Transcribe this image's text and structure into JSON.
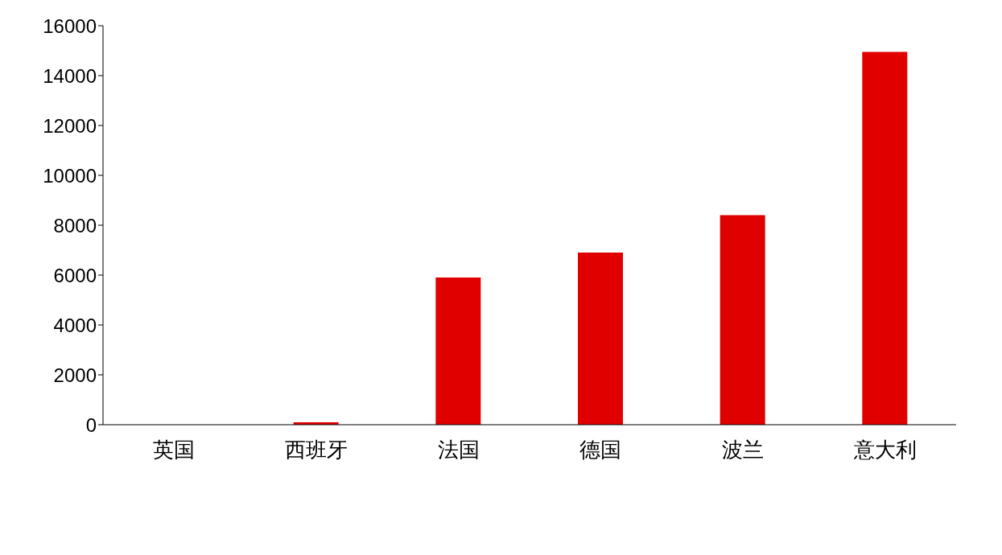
{
  "chart_data": {
    "type": "bar",
    "categories": [
      "英国",
      "西班牙",
      "法国",
      "德国",
      "波兰",
      "意大利"
    ],
    "values": [
      0,
      100,
      5900,
      6900,
      8400,
      14950
    ],
    "color": "#e00000",
    "ylim": [
      0,
      16000
    ],
    "yticks": [
      0,
      2000,
      4000,
      6000,
      8000,
      10000,
      12000,
      14000,
      16000
    ],
    "grid": false
  }
}
